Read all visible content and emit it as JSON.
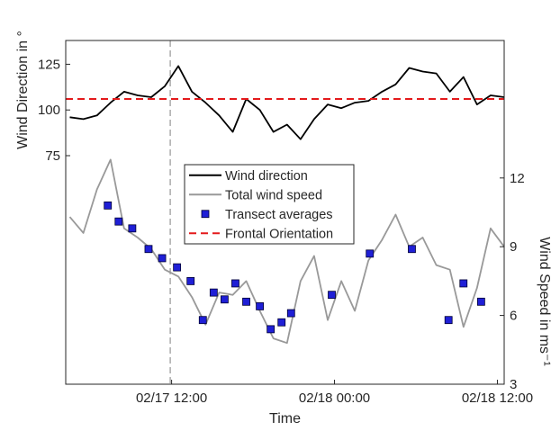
{
  "chart_data": {
    "type": "line",
    "x_label": "Time",
    "y_label": "Wind Direction in °",
    "y2_label": "Wind Speed in ms⁻¹",
    "xlim": [
      4.2,
      36.5
    ],
    "xticks": [
      {
        "value": 12,
        "label": "02/17 12:00"
      },
      {
        "value": 24,
        "label": "02/18 00:00"
      },
      {
        "value": 36,
        "label": "02/18 12:00"
      }
    ],
    "ylim": [
      -50,
      138
    ],
    "yticks": [
      75,
      100,
      125
    ],
    "y2lim": [
      3,
      18
    ],
    "y2ticks": [
      3,
      6,
      9,
      12
    ],
    "vline": 11.9,
    "legend": "center",
    "series": [
      {
        "name": "Wind direction",
        "color": "#000000",
        "type": "line",
        "axis": "y",
        "x": [
          4.5,
          5.5,
          6.5,
          7.5,
          8.5,
          9.5,
          10.5,
          11.5,
          12.5,
          13.5,
          14.5,
          15.5,
          16.5,
          17.5,
          18.5,
          19.5,
          20.5,
          21.5,
          22.5,
          23.5,
          24.5,
          25.5,
          26.5,
          27.5,
          28.5,
          29.5,
          30.5,
          31.5,
          32.5,
          33.5,
          34.5,
          35.5,
          36.5
        ],
        "values": [
          96,
          95,
          97,
          104,
          110,
          108,
          107,
          113,
          124,
          110,
          104,
          97,
          88,
          106,
          100,
          88,
          92,
          84,
          95,
          103,
          101,
          104,
          105,
          110,
          114,
          123,
          121,
          120,
          110,
          118,
          103,
          108,
          107
        ]
      },
      {
        "name": "Total wind speed",
        "color": "#999999",
        "type": "line",
        "axis": "y2",
        "x": [
          4.5,
          5.5,
          6.5,
          7.5,
          8.5,
          9.5,
          10.5,
          11.5,
          12.5,
          13.5,
          14.5,
          15.5,
          16.5,
          17.5,
          18.5,
          19.5,
          20.5,
          21.5,
          22.5,
          23.5,
          24.5,
          25.5,
          26.5,
          27.5,
          28.5,
          29.5,
          30.5,
          31.5,
          32.5,
          33.5,
          34.5,
          35.5,
          36.5
        ],
        "values": [
          10.3,
          9.6,
          11.5,
          12.8,
          9.8,
          9.4,
          8.9,
          8.0,
          7.7,
          6.8,
          5.6,
          7.0,
          6.9,
          7.5,
          6.2,
          5.0,
          4.8,
          7.5,
          8.6,
          5.8,
          7.5,
          6.2,
          8.4,
          9.3,
          10.4,
          9.0,
          9.4,
          8.2,
          8.0,
          5.5,
          7.2,
          9.8,
          9.0
        ]
      },
      {
        "name": "Transect averages",
        "color": "#1f1fd6",
        "type": "scatter",
        "axis": "y2",
        "x": [
          7.3,
          8.1,
          9.1,
          10.3,
          11.3,
          12.4,
          13.4,
          14.3,
          15.1,
          15.9,
          16.7,
          17.5,
          18.5,
          19.3,
          20.1,
          20.8,
          23.8,
          26.6,
          29.7,
          32.4,
          33.5,
          34.8
        ],
        "values": [
          10.8,
          10.1,
          9.8,
          8.9,
          8.5,
          8.1,
          7.5,
          5.8,
          7.0,
          6.7,
          7.4,
          6.6,
          6.4,
          5.4,
          5.7,
          6.1,
          6.9,
          8.7,
          8.9,
          5.8,
          7.4,
          6.6
        ]
      },
      {
        "name": "Frontal Orientation",
        "color": "#e41a1c",
        "type": "hline",
        "axis": "y",
        "values": [
          106
        ]
      }
    ]
  }
}
